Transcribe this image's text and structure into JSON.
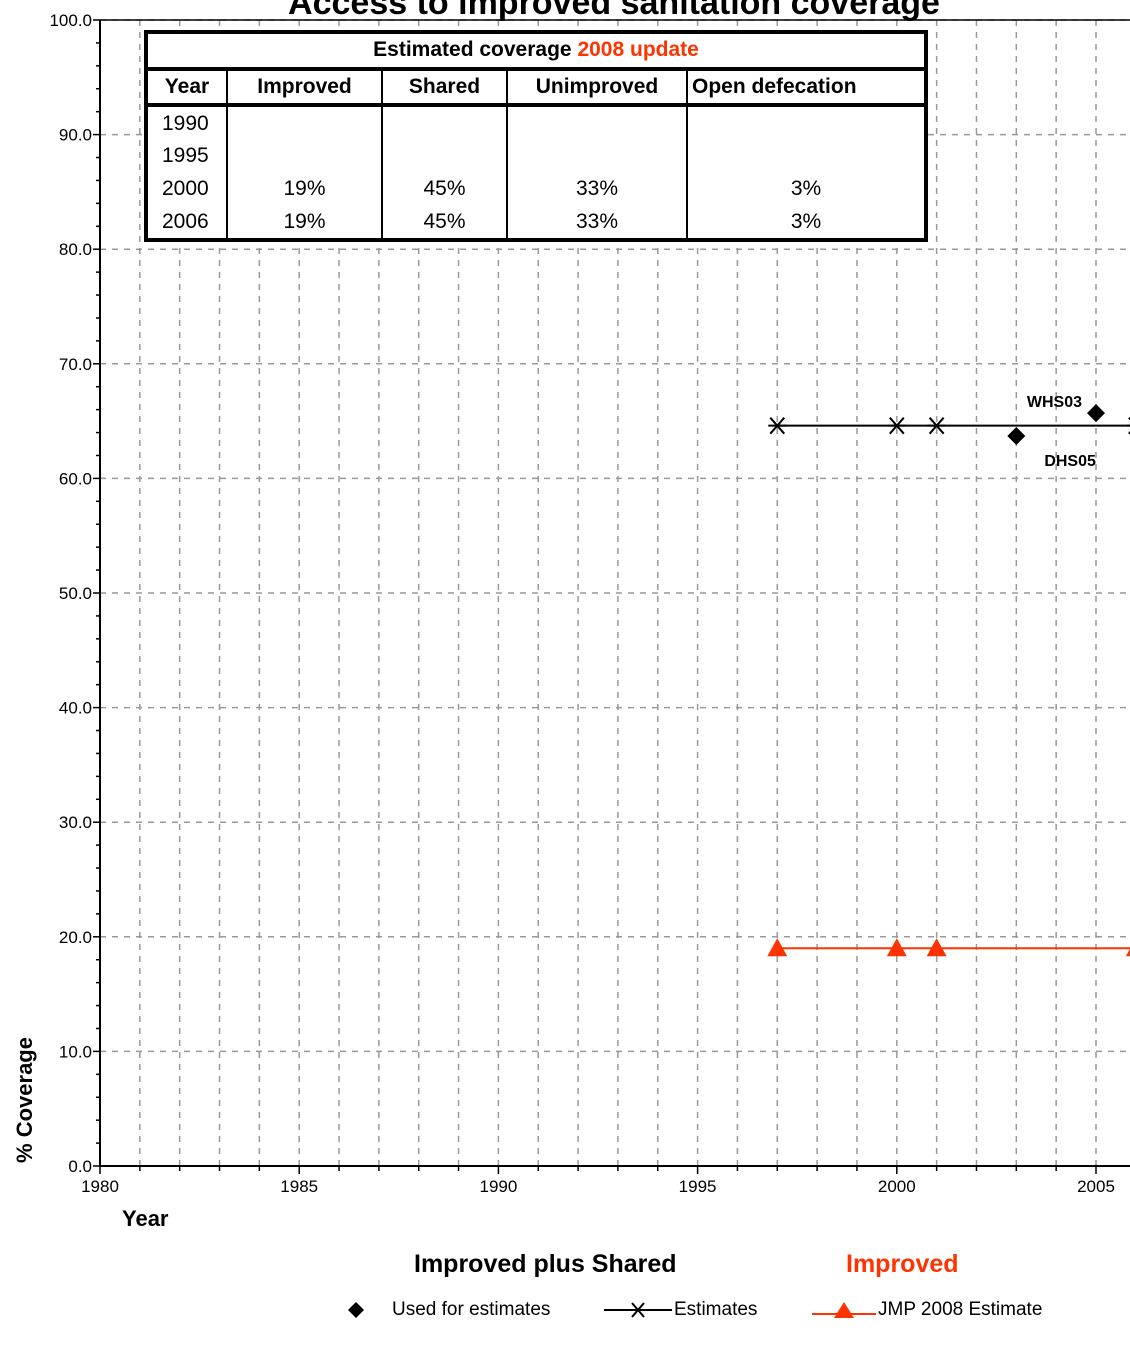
{
  "chart_data": {
    "type": "line",
    "title": "Access to improved sanitation coverage",
    "xlabel": "Year",
    "ylabel": "% Coverage",
    "xlim": [
      1980,
      2006
    ],
    "ylim": [
      0,
      100
    ],
    "x_ticks": [
      "1980",
      "1985",
      "1990",
      "1995",
      "2000",
      "2005"
    ],
    "y_ticks": [
      "0.0",
      "10.0",
      "20.0",
      "30.0",
      "40.0",
      "50.0",
      "60.0",
      "70.0",
      "80.0",
      "90.0",
      "100.0"
    ],
    "grid": true,
    "series": [
      {
        "name": "Used for estimates",
        "marker": "diamond",
        "color": "#000000",
        "points": [
          {
            "x": 2003,
            "y": 63.7,
            "label": "DHS05"
          },
          {
            "x": 2005,
            "y": 65.7,
            "label": "WHS03"
          }
        ]
      },
      {
        "name": "Estimates",
        "marker": "asterisk",
        "color": "#000000",
        "points": [
          {
            "x": 1997,
            "y": 64.6
          },
          {
            "x": 2000,
            "y": 64.6
          },
          {
            "x": 2001,
            "y": 64.6
          },
          {
            "x": 2006,
            "y": 64.6
          }
        ]
      },
      {
        "name": "JMP 2008 Estimate",
        "marker": "triangle",
        "color": "#ff3300",
        "points": [
          {
            "x": 1997,
            "y": 19
          },
          {
            "x": 2000,
            "y": 19
          },
          {
            "x": 2001,
            "y": 19
          },
          {
            "x": 2006,
            "y": 19
          }
        ]
      }
    ]
  },
  "table": {
    "caption_black": "Estimated coverage ",
    "caption_red": "2008 update",
    "headers": [
      "Year",
      "Improved",
      "Shared",
      "Unimproved",
      "Open defecation"
    ],
    "rows": [
      [
        "1990",
        "",
        "",
        "",
        ""
      ],
      [
        "1995",
        "",
        "",
        "",
        ""
      ],
      [
        "2000",
        "19%",
        "45%",
        "33%",
        "3%"
      ],
      [
        "2006",
        "19%",
        "45%",
        "33%",
        "3%"
      ]
    ]
  },
  "subtitles": {
    "left": "Improved plus Shared",
    "right": "Improved"
  },
  "legend": [
    "Used for estimates",
    "Estimates",
    "JMP 2008 Estimate"
  ],
  "colors": {
    "improved": "#ff3300",
    "black": "#000000",
    "grid": "#999999"
  }
}
